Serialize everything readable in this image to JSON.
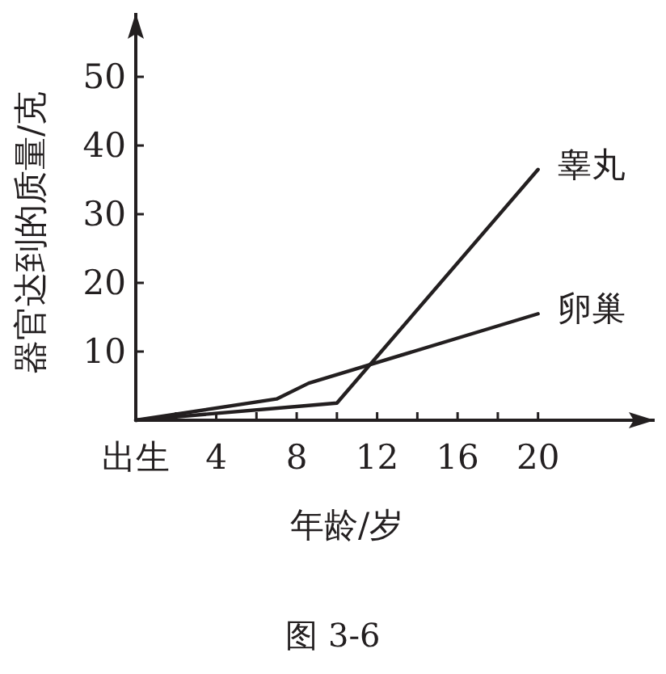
{
  "chart_data": {
    "type": "line",
    "xlabel": "年龄/岁",
    "ylabel": "器官达到的质量/克",
    "series": [
      {
        "name": "睾丸",
        "color": "#231f20",
        "x": [
          0,
          10,
          20
        ],
        "values": [
          0,
          2.5,
          36.5
        ]
      },
      {
        "name": "卵巢",
        "color": "#231f20",
        "x": [
          0,
          7,
          8.6,
          20
        ],
        "values": [
          0,
          3.1,
          5.4,
          15.5
        ]
      }
    ],
    "xlim": [
      0,
      25.8
    ],
    "ylim": [
      0,
      59.3
    ],
    "xticks": [
      {
        "value": 0,
        "label": "出生"
      },
      {
        "value": 2,
        "label": null
      },
      4,
      {
        "value": 6,
        "label": null
      },
      8,
      {
        "value": 10,
        "label": null
      },
      12,
      {
        "value": 14,
        "label": null
      },
      16,
      {
        "value": 18,
        "label": null
      },
      20
    ],
    "yticks": [
      {
        "value": 0,
        "label": null
      },
      10,
      20,
      30,
      40,
      50
    ],
    "grid": false,
    "legend": false,
    "marker": "none",
    "line_style": "solid",
    "annotations": [
      "图 3-6"
    ]
  }
}
